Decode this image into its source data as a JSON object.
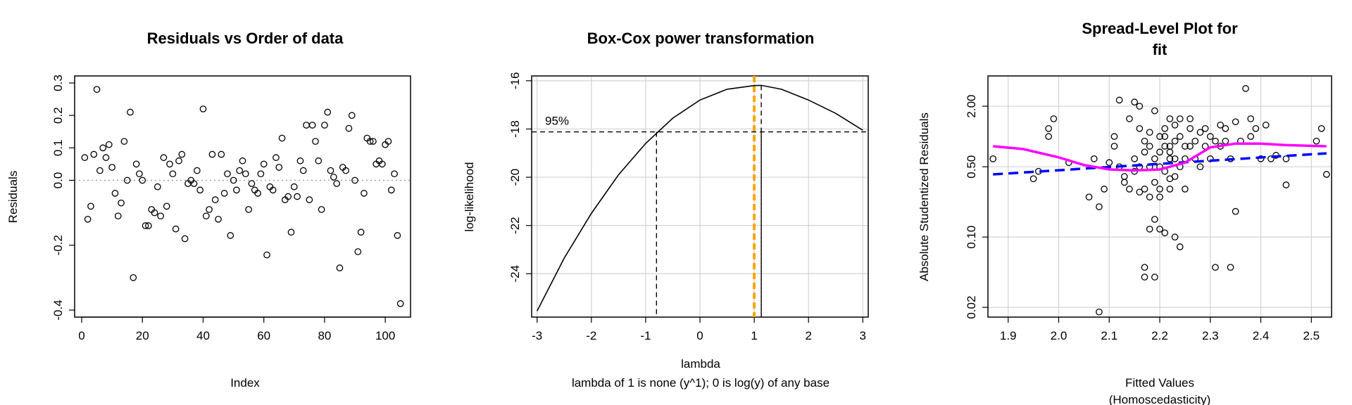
{
  "chart_data": [
    {
      "type": "scatter",
      "title": "Residuals vs Order of data",
      "xlabel": "Index",
      "ylabel": "Residuals",
      "xlim": [
        0,
        106
      ],
      "ylim": [
        -0.4,
        0.3
      ],
      "xticks": [
        0,
        20,
        40,
        60,
        80,
        100
      ],
      "yticks": [
        -0.4,
        -0.2,
        0.0,
        0.1,
        0.2,
        0.3
      ],
      "ytick_labels": [
        "-0.4",
        "-0.2",
        "0.0",
        "0.1",
        "0.2",
        "0.3"
      ],
      "reference_line_y": 0,
      "points": {
        "x": [
          1,
          2,
          3,
          4,
          5,
          6,
          7,
          8,
          9,
          10,
          11,
          12,
          13,
          14,
          15,
          16,
          17,
          18,
          19,
          20,
          21,
          22,
          23,
          24,
          25,
          26,
          27,
          28,
          29,
          30,
          31,
          32,
          33,
          34,
          35,
          36,
          37,
          38,
          39,
          40,
          41,
          42,
          43,
          44,
          45,
          46,
          47,
          48,
          49,
          50,
          51,
          52,
          53,
          54,
          55,
          56,
          57,
          58,
          59,
          60,
          61,
          62,
          63,
          64,
          65,
          66,
          67,
          68,
          69,
          70,
          71,
          72,
          73,
          74,
          75,
          76,
          77,
          78,
          79,
          80,
          81,
          82,
          83,
          84,
          85,
          86,
          87,
          88,
          89,
          90,
          91,
          92,
          93,
          94,
          95,
          96,
          97,
          98,
          99,
          100,
          101,
          102,
          103,
          104,
          105
        ],
        "y": [
          0.07,
          -0.12,
          -0.08,
          0.08,
          0.28,
          0.03,
          0.1,
          0.07,
          0.11,
          0.04,
          -0.04,
          -0.11,
          -0.07,
          0.12,
          0.0,
          0.21,
          -0.3,
          0.05,
          0.02,
          0.0,
          -0.14,
          -0.14,
          -0.09,
          -0.1,
          -0.02,
          -0.11,
          0.07,
          -0.08,
          0.05,
          0.02,
          -0.15,
          0.06,
          0.08,
          -0.18,
          -0.01,
          0.0,
          -0.01,
          0.03,
          -0.03,
          0.22,
          -0.11,
          -0.09,
          0.08,
          -0.06,
          -0.12,
          0.08,
          -0.04,
          0.02,
          -0.17,
          0.0,
          -0.03,
          0.03,
          0.06,
          0.02,
          -0.09,
          -0.01,
          -0.03,
          -0.04,
          0.02,
          0.05,
          -0.23,
          -0.02,
          -0.03,
          0.07,
          0.04,
          0.13,
          -0.06,
          -0.05,
          -0.16,
          -0.02,
          -0.05,
          0.06,
          0.03,
          0.17,
          -0.06,
          0.17,
          0.12,
          0.06,
          -0.09,
          0.17,
          0.21,
          0.03,
          0.01,
          -0.01,
          -0.27,
          0.04,
          0.03,
          0.16,
          0.2,
          0.0,
          -0.22,
          -0.16,
          -0.04,
          0.13,
          0.12,
          0.12,
          0.05,
          0.06,
          0.05,
          0.11,
          0.12,
          -0.03,
          0.02,
          -0.17,
          -0.38
        ]
      }
    },
    {
      "type": "line",
      "title": "Box-Cox power transformation",
      "xlabel": "lambda",
      "subtitle": "lambda of 1 is none (y^1); 0 is log(y) of any base",
      "ylabel": "log-likelihood",
      "xlim": [
        -3.1,
        3.1
      ],
      "ylim": [
        -25.8,
        -15.8
      ],
      "xticks": [
        -3,
        -2,
        -1,
        0,
        1,
        2,
        3
      ],
      "yticks": [
        -24,
        -22,
        -20,
        -18,
        -16
      ],
      "series": [
        {
          "x": [
            -3.0,
            -2.5,
            -2.0,
            -1.5,
            -1.0,
            -0.5,
            0.0,
            0.5,
            1.0,
            1.13,
            1.5,
            2.0,
            2.5,
            3.0
          ],
          "values": [
            -25.55,
            -23.35,
            -21.5,
            -19.9,
            -18.6,
            -17.55,
            -16.8,
            -16.35,
            -16.2,
            -16.19,
            -16.35,
            -16.8,
            -17.35,
            -18.05
          ]
        }
      ],
      "ci_label": "95%",
      "ci_loglik": -18.12,
      "ci_lower": -0.8,
      "ci_upper": 1.13,
      "lambda_hat": 1.13,
      "reference_lambda": 1,
      "reference_color": "#FFA500"
    },
    {
      "type": "scatter",
      "title": "Spread-Level Plot for\nfit",
      "xlabel": "Fitted Values",
      "xlabel2": "(Homoscedasticity)",
      "ylabel": "Absolute Studentized Residuals",
      "log_y": true,
      "xlim": [
        1.86,
        2.54
      ],
      "ylim": [
        0.016,
        4.0
      ],
      "xticks": [
        1.9,
        2.0,
        2.1,
        2.2,
        2.3,
        2.4,
        2.5
      ],
      "yticks": [
        0.02,
        0.1,
        0.5,
        2.0
      ],
      "ytick_labels": [
        "0.02",
        "0.10",
        "0.50",
        "2.00"
      ],
      "points": {
        "x": [
          1.87,
          1.95,
          1.96,
          1.98,
          1.98,
          1.99,
          2.02,
          2.06,
          2.07,
          2.08,
          2.08,
          2.09,
          2.1,
          2.11,
          2.11,
          2.12,
          2.12,
          2.13,
          2.13,
          2.14,
          2.14,
          2.15,
          2.15,
          2.15,
          2.16,
          2.16,
          2.16,
          2.16,
          2.17,
          2.17,
          2.17,
          2.17,
          2.17,
          2.18,
          2.18,
          2.18,
          2.18,
          2.18,
          2.19,
          2.19,
          2.19,
          2.19,
          2.19,
          2.2,
          2.2,
          2.2,
          2.2,
          2.2,
          2.2,
          2.21,
          2.21,
          2.21,
          2.21,
          2.21,
          2.22,
          2.22,
          2.22,
          2.22,
          2.22,
          2.22,
          2.23,
          2.23,
          2.23,
          2.23,
          2.23,
          2.24,
          2.24,
          2.24,
          2.24,
          2.25,
          2.25,
          2.25,
          2.26,
          2.26,
          2.26,
          2.27,
          2.27,
          2.28,
          2.28,
          2.29,
          2.29,
          2.3,
          2.3,
          2.31,
          2.31,
          2.32,
          2.32,
          2.33,
          2.33,
          2.34,
          2.34,
          2.35,
          2.35,
          2.36,
          2.37,
          2.38,
          2.38,
          2.39,
          2.4,
          2.41,
          2.42,
          2.43,
          2.45,
          2.45,
          2.51,
          2.52,
          2.53
        ],
        "y": [
          0.6,
          0.38,
          0.45,
          1.0,
          1.2,
          1.5,
          0.55,
          0.25,
          0.6,
          0.2,
          0.018,
          0.3,
          0.55,
          1.0,
          0.8,
          0.5,
          2.3,
          0.4,
          0.35,
          1.5,
          0.3,
          0.45,
          0.6,
          2.2,
          0.28,
          0.5,
          1.2,
          2.0,
          0.04,
          0.05,
          0.3,
          0.9,
          0.7,
          0.12,
          0.5,
          0.8,
          1.1,
          0.25,
          0.04,
          0.15,
          0.35,
          1.8,
          0.6,
          0.12,
          0.3,
          0.5,
          1.0,
          0.7,
          0.25,
          0.11,
          0.45,
          0.8,
          1.2,
          1.0,
          0.6,
          0.38,
          0.3,
          0.7,
          0.8,
          1.5,
          0.1,
          0.4,
          0.9,
          1.3,
          0.6,
          0.08,
          0.5,
          1.0,
          1.5,
          0.3,
          0.6,
          0.8,
          0.8,
          1.2,
          1.5,
          0.6,
          0.9,
          0.5,
          1.1,
          0.8,
          1.2,
          0.6,
          1.0,
          0.05,
          0.9,
          0.8,
          1.3,
          0.9,
          1.2,
          0.05,
          0.6,
          0.18,
          1.4,
          0.9,
          3.0,
          1.0,
          1.5,
          1.2,
          0.6,
          1.3,
          0.6,
          0.65,
          0.33,
          0.6,
          0.9,
          1.2,
          0.42
        ]
      },
      "series": [
        {
          "style": "dashed",
          "color": "#0000FF",
          "x": [
            1.87,
            2.53
          ],
          "values": [
            0.42,
            0.68
          ]
        },
        {
          "style": "solid",
          "color": "#FF00FF",
          "x": [
            1.87,
            1.93,
            2.0,
            2.05,
            2.1,
            2.15,
            2.2,
            2.25,
            2.3,
            2.35,
            2.4,
            2.45,
            2.53
          ],
          "values": [
            0.8,
            0.75,
            0.62,
            0.52,
            0.47,
            0.46,
            0.47,
            0.55,
            0.78,
            0.85,
            0.85,
            0.82,
            0.8
          ]
        }
      ]
    }
  ]
}
